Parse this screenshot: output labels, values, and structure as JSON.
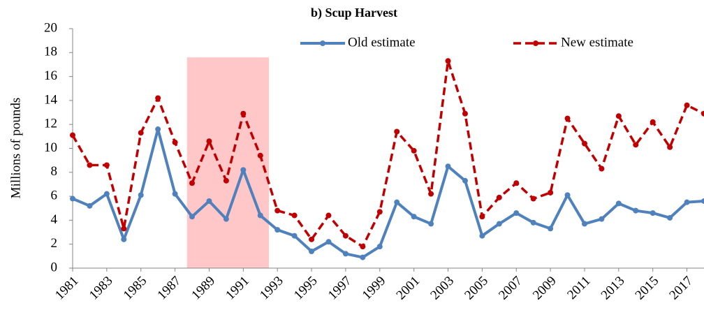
{
  "chart_data": {
    "type": "line",
    "title": "b) Scup Harvest",
    "ylabel": "Millions of pounds",
    "x": [
      1981,
      1982,
      1983,
      1984,
      1985,
      1986,
      1987,
      1988,
      1989,
      1990,
      1991,
      1992,
      1993,
      1994,
      1995,
      1996,
      1997,
      1998,
      1999,
      2000,
      2001,
      2002,
      2003,
      2004,
      2005,
      2006,
      2007,
      2008,
      2009,
      2010,
      2011,
      2012,
      2013,
      2014,
      2015,
      2016,
      2017,
      2018
    ],
    "series": [
      {
        "name": "Old estimate",
        "color": "#4f81bd",
        "dashed": false,
        "values": [
          5.8,
          5.2,
          6.2,
          2.4,
          6.1,
          11.6,
          6.2,
          4.3,
          5.6,
          4.1,
          8.2,
          4.4,
          3.2,
          2.7,
          1.4,
          2.2,
          1.2,
          0.9,
          1.8,
          5.5,
          4.3,
          3.7,
          8.5,
          7.3,
          2.7,
          3.7,
          4.6,
          3.8,
          3.3,
          6.1,
          3.7,
          4.1,
          5.4,
          4.8,
          4.6,
          4.2,
          5.5,
          5.6
        ]
      },
      {
        "name": "New estimate",
        "color": "#c00000",
        "dashed": true,
        "values": [
          11.1,
          8.6,
          8.6,
          3.3,
          11.3,
          14.2,
          10.5,
          7.1,
          10.6,
          7.3,
          12.9,
          9.4,
          4.8,
          4.4,
          2.4,
          4.4,
          2.7,
          1.8,
          4.7,
          11.4,
          9.8,
          6.2,
          17.3,
          12.9,
          4.3,
          5.9,
          7.1,
          5.8,
          6.3,
          12.5,
          10.4,
          8.3,
          12.7,
          10.3,
          12.2,
          10.1,
          13.6,
          12.9
        ]
      }
    ],
    "highlight": {
      "x": [
        1987.7,
        1992.5
      ],
      "y": [
        0,
        17.6
      ],
      "color": "#ffc7c7"
    },
    "xlim": [
      1981,
      2018
    ],
    "xticks": [
      1981,
      1983,
      1985,
      1987,
      1989,
      1991,
      1993,
      1995,
      1997,
      1999,
      2001,
      2003,
      2005,
      2007,
      2009,
      2011,
      2013,
      2015,
      2017
    ],
    "ylim": [
      0,
      20
    ],
    "yticks": [
      0,
      2,
      4,
      6,
      8,
      10,
      12,
      14,
      16,
      18,
      20
    ]
  }
}
